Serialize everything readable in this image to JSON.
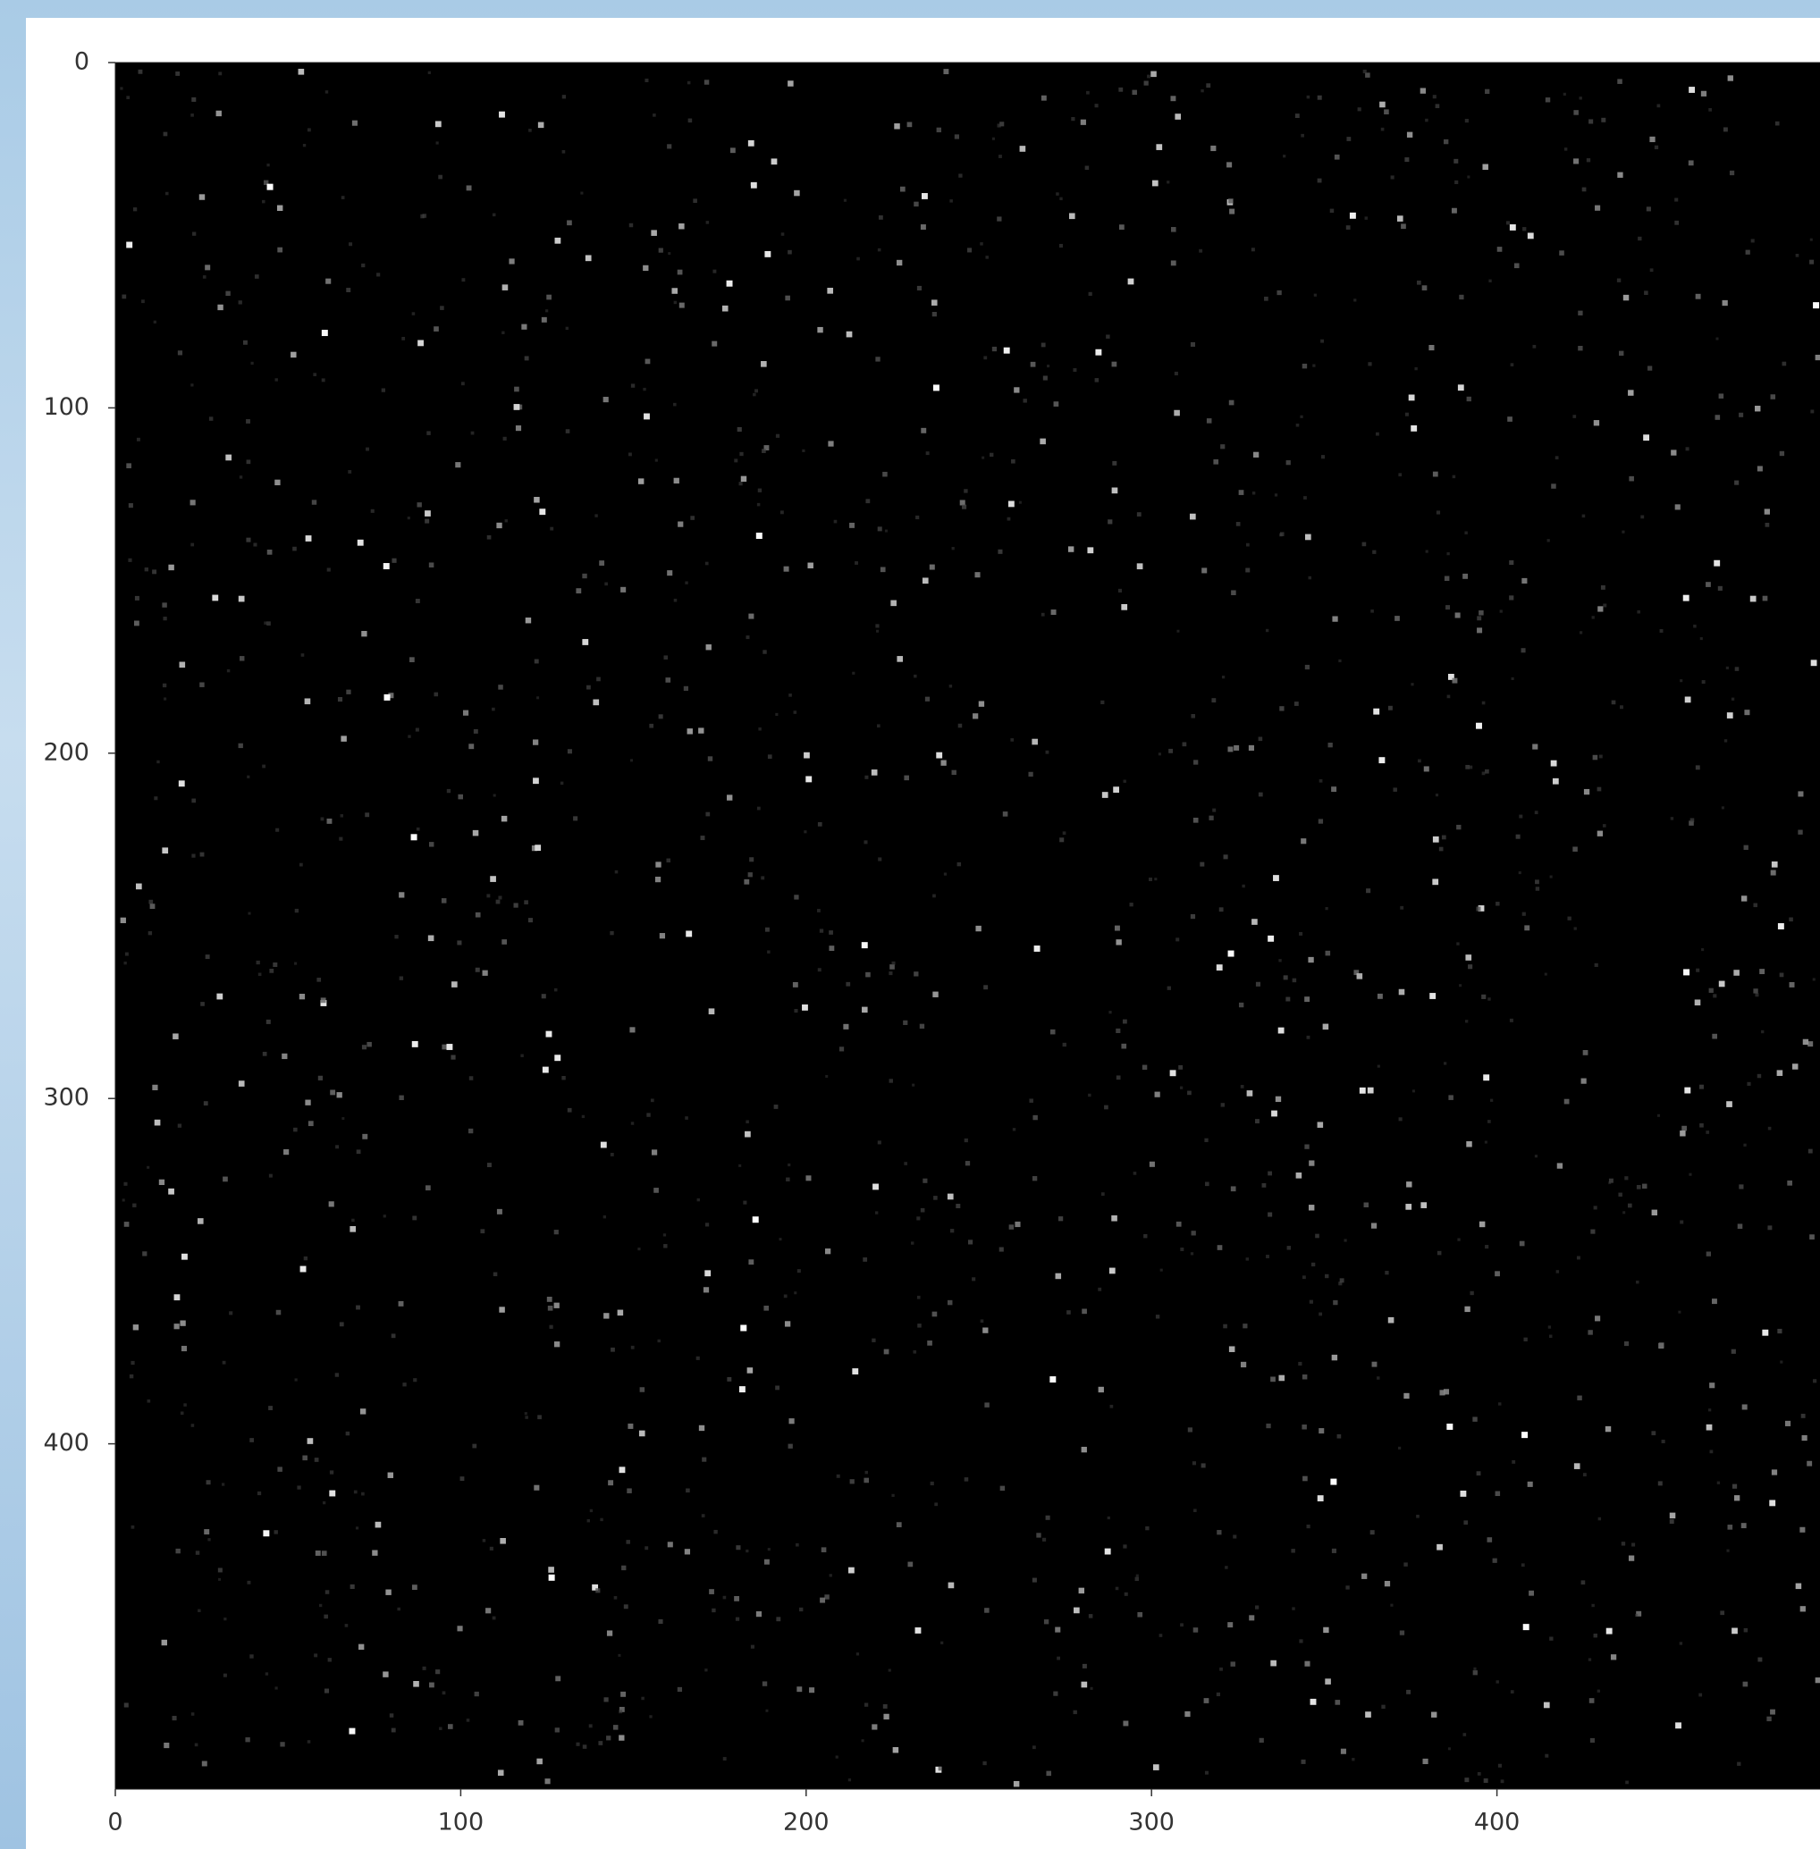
{
  "chart_data": {
    "type": "image",
    "xlim": [
      0,
      500
    ],
    "ylim": [
      0,
      500
    ],
    "xticks": [
      0,
      100,
      200,
      300,
      400
    ],
    "yticks": [
      0,
      100,
      200,
      300,
      400
    ]
  }
}
